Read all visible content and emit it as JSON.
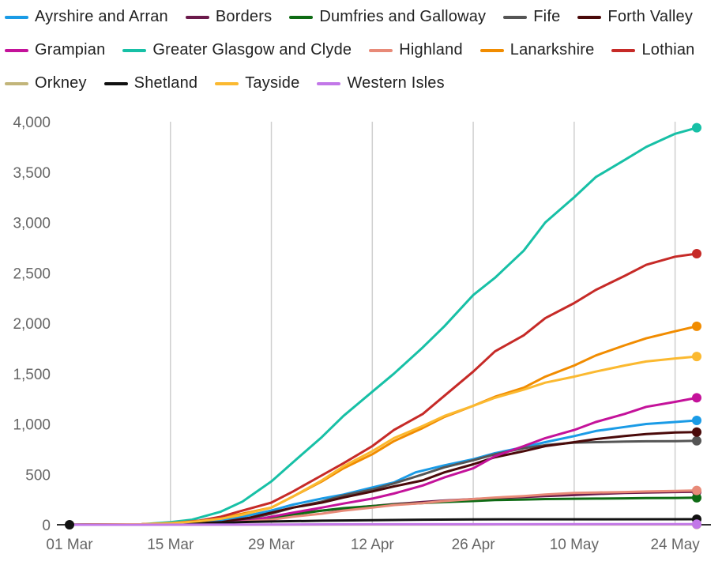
{
  "chart_data": {
    "type": "line",
    "title": "",
    "xlabel": "",
    "ylabel": "",
    "ylim": [
      0,
      4000
    ],
    "y_ticks": [
      "0",
      "500",
      "1,000",
      "1,500",
      "2,000",
      "2,500",
      "3,000",
      "3,500",
      "4,000"
    ],
    "y_tick_values": [
      0,
      500,
      1000,
      1500,
      2000,
      2500,
      3000,
      3500,
      4000
    ],
    "x_ticks": [
      "01 Mar",
      "15 Mar",
      "29 Mar",
      "12 Apr",
      "26 Apr",
      "10 May",
      "24 May"
    ],
    "x_tick_days": [
      0,
      14,
      28,
      42,
      56,
      70,
      84
    ],
    "x_range_days": [
      0,
      87
    ],
    "legend_position": "top",
    "grid": "vertical",
    "series": [
      {
        "name": "Ayrshire and Arran",
        "color": "#1a9be6",
        "points": [
          [
            0,
            0
          ],
          [
            10,
            5
          ],
          [
            14,
            15
          ],
          [
            18,
            25
          ],
          [
            21,
            45
          ],
          [
            24,
            80
          ],
          [
            28,
            140
          ],
          [
            31,
            200
          ],
          [
            35,
            260
          ],
          [
            38,
            300
          ],
          [
            42,
            370
          ],
          [
            45,
            420
          ],
          [
            48,
            520
          ],
          [
            52,
            590
          ],
          [
            56,
            650
          ],
          [
            59,
            710
          ],
          [
            63,
            770
          ],
          [
            66,
            820
          ],
          [
            70,
            880
          ],
          [
            73,
            930
          ],
          [
            77,
            970
          ],
          [
            80,
            1000
          ],
          [
            84,
            1020
          ],
          [
            87,
            1035
          ]
        ]
      },
      {
        "name": "Borders",
        "color": "#6b1a4b",
        "points": [
          [
            0,
            0
          ],
          [
            14,
            5
          ],
          [
            21,
            20
          ],
          [
            28,
            70
          ],
          [
            31,
            110
          ],
          [
            35,
            140
          ],
          [
            38,
            160
          ],
          [
            42,
            185
          ],
          [
            45,
            205
          ],
          [
            49,
            225
          ],
          [
            52,
            240
          ],
          [
            56,
            255
          ],
          [
            59,
            265
          ],
          [
            63,
            275
          ],
          [
            66,
            285
          ],
          [
            70,
            295
          ],
          [
            73,
            305
          ],
          [
            77,
            315
          ],
          [
            80,
            320
          ],
          [
            84,
            325
          ],
          [
            87,
            328
          ]
        ]
      },
      {
        "name": "Dumfries and Galloway",
        "color": "#0e6b14",
        "points": [
          [
            0,
            0
          ],
          [
            14,
            5
          ],
          [
            21,
            20
          ],
          [
            28,
            60
          ],
          [
            31,
            100
          ],
          [
            35,
            140
          ],
          [
            38,
            165
          ],
          [
            42,
            185
          ],
          [
            45,
            200
          ],
          [
            49,
            215
          ],
          [
            52,
            225
          ],
          [
            56,
            235
          ],
          [
            59,
            245
          ],
          [
            63,
            250
          ],
          [
            66,
            255
          ],
          [
            70,
            258
          ],
          [
            73,
            260
          ],
          [
            77,
            262
          ],
          [
            80,
            264
          ],
          [
            84,
            266
          ],
          [
            87,
            268
          ]
        ]
      },
      {
        "name": "Fife",
        "color": "#555555",
        "points": [
          [
            0,
            0
          ],
          [
            14,
            5
          ],
          [
            21,
            20
          ],
          [
            25,
            60
          ],
          [
            28,
            110
          ],
          [
            31,
            170
          ],
          [
            35,
            230
          ],
          [
            38,
            290
          ],
          [
            42,
            350
          ],
          [
            45,
            410
          ],
          [
            49,
            500
          ],
          [
            52,
            570
          ],
          [
            56,
            640
          ],
          [
            59,
            700
          ],
          [
            63,
            760
          ],
          [
            66,
            790
          ],
          [
            70,
            815
          ],
          [
            73,
            820
          ],
          [
            77,
            825
          ],
          [
            80,
            828
          ],
          [
            84,
            830
          ],
          [
            87,
            833
          ]
        ]
      },
      {
        "name": "Forth Valley",
        "color": "#4a0a0a",
        "points": [
          [
            0,
            0
          ],
          [
            14,
            5
          ],
          [
            21,
            25
          ],
          [
            25,
            70
          ],
          [
            28,
            120
          ],
          [
            31,
            170
          ],
          [
            35,
            220
          ],
          [
            38,
            270
          ],
          [
            42,
            330
          ],
          [
            45,
            380
          ],
          [
            49,
            440
          ],
          [
            52,
            520
          ],
          [
            56,
            600
          ],
          [
            59,
            670
          ],
          [
            63,
            730
          ],
          [
            66,
            780
          ],
          [
            70,
            820
          ],
          [
            73,
            850
          ],
          [
            77,
            880
          ],
          [
            80,
            900
          ],
          [
            84,
            915
          ],
          [
            87,
            920
          ]
        ]
      },
      {
        "name": "Grampian",
        "color": "#c4129a",
        "points": [
          [
            0,
            0
          ],
          [
            14,
            5
          ],
          [
            21,
            15
          ],
          [
            25,
            40
          ],
          [
            28,
            80
          ],
          [
            31,
            120
          ],
          [
            35,
            170
          ],
          [
            38,
            210
          ],
          [
            42,
            260
          ],
          [
            45,
            310
          ],
          [
            49,
            390
          ],
          [
            52,
            470
          ],
          [
            56,
            560
          ],
          [
            59,
            680
          ],
          [
            63,
            780
          ],
          [
            66,
            860
          ],
          [
            70,
            940
          ],
          [
            73,
            1020
          ],
          [
            77,
            1100
          ],
          [
            80,
            1170
          ],
          [
            84,
            1220
          ],
          [
            87,
            1260
          ]
        ]
      },
      {
        "name": "Greater Glasgow and Clyde",
        "color": "#17c0a6",
        "points": [
          [
            0,
            0
          ],
          [
            10,
            5
          ],
          [
            14,
            25
          ],
          [
            17,
            50
          ],
          [
            21,
            130
          ],
          [
            24,
            230
          ],
          [
            26,
            330
          ],
          [
            28,
            430
          ],
          [
            31,
            620
          ],
          [
            35,
            870
          ],
          [
            38,
            1080
          ],
          [
            42,
            1320
          ],
          [
            45,
            1500
          ],
          [
            49,
            1760
          ],
          [
            52,
            1970
          ],
          [
            56,
            2280
          ],
          [
            59,
            2450
          ],
          [
            63,
            2720
          ],
          [
            66,
            3000
          ],
          [
            70,
            3250
          ],
          [
            73,
            3450
          ],
          [
            77,
            3620
          ],
          [
            80,
            3750
          ],
          [
            84,
            3880
          ],
          [
            87,
            3940
          ]
        ]
      },
      {
        "name": "Highland",
        "color": "#e88a78",
        "points": [
          [
            0,
            0
          ],
          [
            14,
            5
          ],
          [
            21,
            15
          ],
          [
            28,
            50
          ],
          [
            31,
            80
          ],
          [
            35,
            110
          ],
          [
            38,
            140
          ],
          [
            42,
            170
          ],
          [
            45,
            195
          ],
          [
            49,
            215
          ],
          [
            52,
            235
          ],
          [
            56,
            255
          ],
          [
            59,
            270
          ],
          [
            63,
            285
          ],
          [
            66,
            300
          ],
          [
            70,
            315
          ],
          [
            73,
            320
          ],
          [
            77,
            325
          ],
          [
            80,
            330
          ],
          [
            84,
            335
          ],
          [
            87,
            340
          ]
        ]
      },
      {
        "name": "Lanarkshire",
        "color": "#f18c00",
        "points": [
          [
            0,
            0
          ],
          [
            10,
            5
          ],
          [
            14,
            15
          ],
          [
            18,
            35
          ],
          [
            21,
            65
          ],
          [
            24,
            110
          ],
          [
            28,
            170
          ],
          [
            31,
            280
          ],
          [
            35,
            430
          ],
          [
            38,
            560
          ],
          [
            42,
            700
          ],
          [
            45,
            830
          ],
          [
            49,
            960
          ],
          [
            52,
            1070
          ],
          [
            56,
            1180
          ],
          [
            59,
            1270
          ],
          [
            63,
            1360
          ],
          [
            66,
            1470
          ],
          [
            70,
            1580
          ],
          [
            73,
            1680
          ],
          [
            77,
            1780
          ],
          [
            80,
            1850
          ],
          [
            84,
            1920
          ],
          [
            87,
            1970
          ]
        ]
      },
      {
        "name": "Lothian",
        "color": "#c62a27",
        "points": [
          [
            0,
            0
          ],
          [
            10,
            5
          ],
          [
            14,
            15
          ],
          [
            18,
            40
          ],
          [
            21,
            80
          ],
          [
            24,
            140
          ],
          [
            28,
            220
          ],
          [
            31,
            330
          ],
          [
            35,
            490
          ],
          [
            38,
            610
          ],
          [
            42,
            780
          ],
          [
            45,
            940
          ],
          [
            49,
            1100
          ],
          [
            52,
            1280
          ],
          [
            56,
            1520
          ],
          [
            59,
            1720
          ],
          [
            63,
            1880
          ],
          [
            66,
            2050
          ],
          [
            70,
            2200
          ],
          [
            73,
            2330
          ],
          [
            77,
            2470
          ],
          [
            80,
            2580
          ],
          [
            84,
            2660
          ],
          [
            87,
            2690
          ]
        ]
      },
      {
        "name": "Orkney",
        "color": "#c2b57a",
        "points": [
          [
            0,
            0
          ],
          [
            28,
            1
          ],
          [
            42,
            2
          ],
          [
            56,
            2
          ],
          [
            70,
            3
          ],
          [
            87,
            3
          ]
        ]
      },
      {
        "name": "Shetland",
        "color": "#111111",
        "points": [
          [
            0,
            0
          ],
          [
            10,
            2
          ],
          [
            14,
            8
          ],
          [
            18,
            14
          ],
          [
            21,
            20
          ],
          [
            25,
            28
          ],
          [
            28,
            32
          ],
          [
            35,
            40
          ],
          [
            42,
            45
          ],
          [
            49,
            50
          ],
          [
            56,
            53
          ],
          [
            70,
            54
          ],
          [
            87,
            55
          ]
        ]
      },
      {
        "name": "Tayside",
        "color": "#fbb930",
        "points": [
          [
            0,
            0
          ],
          [
            10,
            5
          ],
          [
            14,
            15
          ],
          [
            18,
            35
          ],
          [
            21,
            60
          ],
          [
            24,
            100
          ],
          [
            28,
            170
          ],
          [
            31,
            280
          ],
          [
            35,
            440
          ],
          [
            38,
            580
          ],
          [
            42,
            730
          ],
          [
            45,
            860
          ],
          [
            49,
            980
          ],
          [
            52,
            1080
          ],
          [
            56,
            1180
          ],
          [
            59,
            1260
          ],
          [
            63,
            1340
          ],
          [
            66,
            1410
          ],
          [
            70,
            1470
          ],
          [
            73,
            1520
          ],
          [
            77,
            1580
          ],
          [
            80,
            1620
          ],
          [
            84,
            1650
          ],
          [
            87,
            1670
          ]
        ]
      },
      {
        "name": "Western Isles",
        "color": "#c277e8",
        "points": [
          [
            0,
            0
          ],
          [
            30,
            2
          ],
          [
            40,
            5
          ],
          [
            87,
            6
          ]
        ]
      }
    ]
  }
}
